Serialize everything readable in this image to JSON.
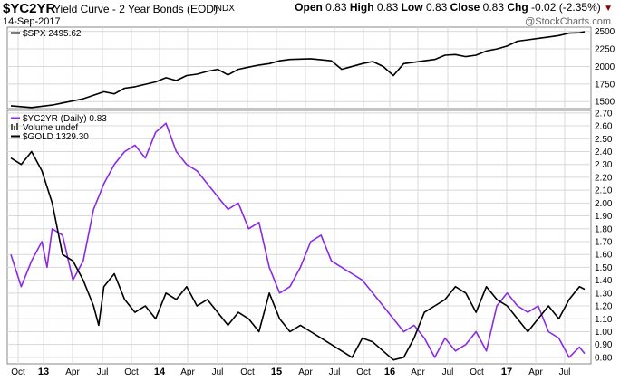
{
  "header": {
    "symbol": "$YC2YR",
    "description": "Yield Curve - 2 Year Bonds (EOD)",
    "exchange": "INDX",
    "date": "14-Sep-2017",
    "open_label": "Open",
    "open": "0.83",
    "high_label": "High",
    "high": "0.83",
    "low_label": "Low",
    "low": "0.83",
    "close_label": "Close",
    "close": "0.83",
    "chg_label": "Chg",
    "chg": "-0.02 (-2.35%)",
    "watermark": "@StockCharts.com"
  },
  "colors": {
    "spx": "#000000",
    "yc2yr": "#8a2be2",
    "gold": "#000000",
    "grid": "#d8d8d8",
    "down_arrow": "#8b0000"
  },
  "chart_data": [
    {
      "type": "line",
      "legend": [
        {
          "text": "$SPX 2495.62",
          "color": "#000000"
        }
      ],
      "x_ticks": [
        "Oct",
        "13",
        "Apr",
        "Jul",
        "Oct",
        "14",
        "Apr",
        "Jul",
        "Oct",
        "15",
        "Apr",
        "Jul",
        "Oct",
        "16",
        "Apr",
        "Jul",
        "Oct",
        "17",
        "Apr",
        "Jul"
      ],
      "y_ticks": [
        1500,
        1750,
        2000,
        2250,
        2500
      ],
      "ylim": [
        1400,
        2560
      ],
      "series": [
        {
          "name": "$SPX",
          "color": "#000000",
          "points": [
            [
              0,
              1440
            ],
            [
              2,
              1415
            ],
            [
              4,
              1450
            ],
            [
              5,
              1480
            ],
            [
              7,
              1540
            ],
            [
              8,
              1590
            ],
            [
              9,
              1640
            ],
            [
              10,
              1610
            ],
            [
              11,
              1690
            ],
            [
              12,
              1710
            ],
            [
              14,
              1780
            ],
            [
              15,
              1840
            ],
            [
              16,
              1800
            ],
            [
              17,
              1870
            ],
            [
              18,
              1890
            ],
            [
              19,
              1930
            ],
            [
              20,
              1960
            ],
            [
              21,
              1880
            ],
            [
              22,
              1960
            ],
            [
              23,
              1990
            ],
            [
              24,
              2020
            ],
            [
              25,
              2040
            ],
            [
              26,
              2080
            ],
            [
              27,
              2100
            ],
            [
              29,
              2110
            ],
            [
              31,
              2080
            ],
            [
              32,
              1960
            ],
            [
              34,
              2040
            ],
            [
              35,
              2070
            ],
            [
              36,
              2000
            ],
            [
              37,
              1870
            ],
            [
              38,
              2040
            ],
            [
              39,
              2060
            ],
            [
              40,
              2080
            ],
            [
              41,
              2100
            ],
            [
              42,
              2160
            ],
            [
              43,
              2170
            ],
            [
              44,
              2140
            ],
            [
              45,
              2160
            ],
            [
              46,
              2220
            ],
            [
              47,
              2250
            ],
            [
              48,
              2290
            ],
            [
              49,
              2360
            ],
            [
              50,
              2380
            ],
            [
              51,
              2400
            ],
            [
              52,
              2420
            ],
            [
              53,
              2440
            ],
            [
              54,
              2475
            ],
            [
              55,
              2480
            ],
            [
              55.5,
              2495.62
            ]
          ]
        }
      ]
    },
    {
      "type": "line",
      "legend": [
        {
          "text": "$YC2YR (Daily) 0.83",
          "color": "#8a2be2"
        },
        {
          "text": "Volume undef",
          "color": "#555555"
        },
        {
          "text": "$GOLD 1329.30",
          "color": "#000000"
        }
      ],
      "x_ticks": [
        "Oct",
        "13",
        "Apr",
        "Jul",
        "Oct",
        "14",
        "Apr",
        "Jul",
        "Oct",
        "15",
        "Apr",
        "Jul",
        "Oct",
        "16",
        "Apr",
        "Jul",
        "Oct",
        "17",
        "Apr",
        "Jul"
      ],
      "y_ticks": [
        0.8,
        0.9,
        1.0,
        1.1,
        1.2,
        1.3,
        1.4,
        1.5,
        1.6,
        1.7,
        1.8,
        1.9,
        2.0,
        2.1,
        2.2,
        2.3,
        2.4,
        2.5,
        2.6,
        2.7
      ],
      "ylim": [
        0.75,
        2.72
      ],
      "series": [
        {
          "name": "$YC2YR",
          "color": "#8a2be2",
          "points": [
            [
              0,
              1.6
            ],
            [
              1,
              1.35
            ],
            [
              2,
              1.55
            ],
            [
              3,
              1.7
            ],
            [
              3.5,
              1.5
            ],
            [
              4,
              1.8
            ],
            [
              5,
              1.75
            ],
            [
              6,
              1.4
            ],
            [
              7,
              1.55
            ],
            [
              8,
              1.95
            ],
            [
              9,
              2.15
            ],
            [
              10,
              2.3
            ],
            [
              11,
              2.4
            ],
            [
              12,
              2.45
            ],
            [
              13,
              2.35
            ],
            [
              14,
              2.55
            ],
            [
              15,
              2.62
            ],
            [
              16,
              2.4
            ],
            [
              17,
              2.3
            ],
            [
              18,
              2.25
            ],
            [
              19,
              2.15
            ],
            [
              20,
              2.05
            ],
            [
              21,
              1.95
            ],
            [
              22,
              2.0
            ],
            [
              23,
              1.8
            ],
            [
              24,
              1.85
            ],
            [
              25,
              1.5
            ],
            [
              26,
              1.3
            ],
            [
              27,
              1.35
            ],
            [
              28,
              1.5
            ],
            [
              29,
              1.7
            ],
            [
              30,
              1.75
            ],
            [
              31,
              1.55
            ],
            [
              32,
              1.5
            ],
            [
              33,
              1.45
            ],
            [
              34,
              1.4
            ],
            [
              35,
              1.3
            ],
            [
              36,
              1.2
            ],
            [
              37,
              1.1
            ],
            [
              38,
              1.0
            ],
            [
              39,
              1.05
            ],
            [
              40,
              0.95
            ],
            [
              41,
              0.8
            ],
            [
              42,
              0.95
            ],
            [
              43,
              0.85
            ],
            [
              44,
              0.9
            ],
            [
              45,
              1.0
            ],
            [
              46,
              0.85
            ],
            [
              47,
              1.2
            ],
            [
              48,
              1.3
            ],
            [
              49,
              1.2
            ],
            [
              50,
              1.15
            ],
            [
              51,
              1.2
            ],
            [
              52,
              1.0
            ],
            [
              53,
              0.95
            ],
            [
              54,
              0.8
            ],
            [
              55,
              0.88
            ],
            [
              55.5,
              0.83
            ]
          ]
        },
        {
          "name": "$GOLD",
          "color": "#000000",
          "points": [
            [
              0,
              2.35
            ],
            [
              1,
              2.3
            ],
            [
              2,
              2.4
            ],
            [
              3,
              2.25
            ],
            [
              4,
              2.0
            ],
            [
              5,
              1.6
            ],
            [
              6,
              1.55
            ],
            [
              7,
              1.4
            ],
            [
              8,
              1.2
            ],
            [
              8.5,
              1.05
            ],
            [
              9,
              1.35
            ],
            [
              10,
              1.45
            ],
            [
              11,
              1.25
            ],
            [
              12,
              1.15
            ],
            [
              13,
              1.2
            ],
            [
              14,
              1.1
            ],
            [
              15,
              1.3
            ],
            [
              16,
              1.25
            ],
            [
              17,
              1.35
            ],
            [
              18,
              1.2
            ],
            [
              19,
              1.25
            ],
            [
              20,
              1.15
            ],
            [
              21,
              1.05
            ],
            [
              22,
              1.15
            ],
            [
              23,
              1.1
            ],
            [
              24,
              1.0
            ],
            [
              25,
              1.3
            ],
            [
              26,
              1.1
            ],
            [
              27,
              1.0
            ],
            [
              28,
              1.05
            ],
            [
              29,
              1.0
            ],
            [
              30,
              0.95
            ],
            [
              31,
              0.9
            ],
            [
              32,
              0.85
            ],
            [
              33,
              0.8
            ],
            [
              34,
              0.95
            ],
            [
              35,
              0.92
            ],
            [
              36,
              0.85
            ],
            [
              37,
              0.78
            ],
            [
              38,
              0.8
            ],
            [
              39,
              0.95
            ],
            [
              40,
              1.15
            ],
            [
              41,
              1.2
            ],
            [
              42,
              1.25
            ],
            [
              43,
              1.35
            ],
            [
              44,
              1.3
            ],
            [
              45,
              1.15
            ],
            [
              46,
              1.35
            ],
            [
              47,
              1.25
            ],
            [
              48,
              1.2
            ],
            [
              49,
              1.1
            ],
            [
              50,
              1.0
            ],
            [
              51,
              1.1
            ],
            [
              52,
              1.2
            ],
            [
              53,
              1.1
            ],
            [
              54,
              1.25
            ],
            [
              55,
              1.35
            ],
            [
              55.5,
              1.33
            ]
          ]
        }
      ]
    }
  ]
}
